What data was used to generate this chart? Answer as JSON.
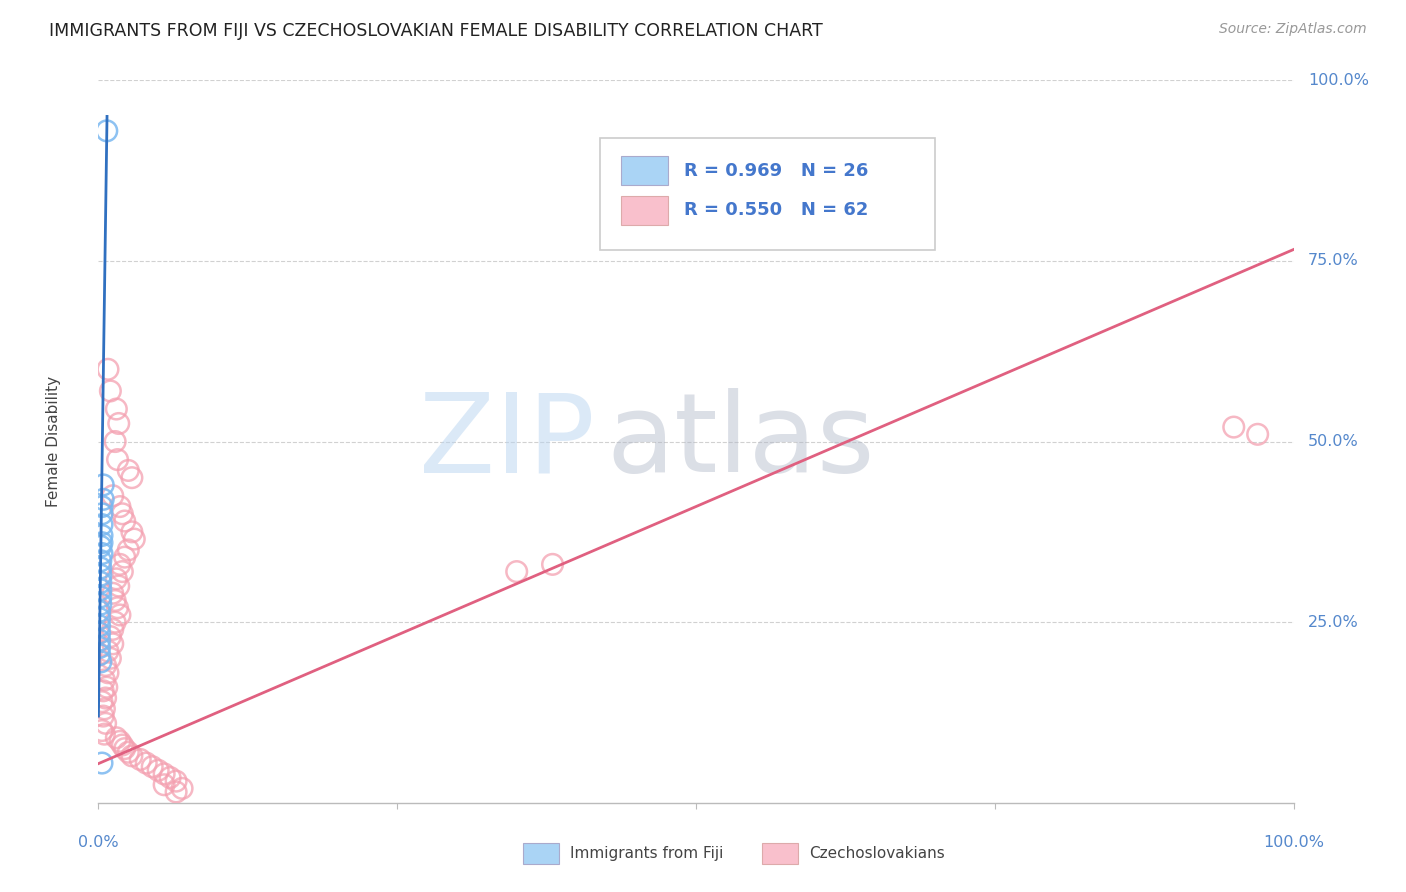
{
  "title": "IMMIGRANTS FROM FIJI VS CZECHOSLOVAKIAN FEMALE DISABILITY CORRELATION CHART",
  "source": "Source: ZipAtlas.com",
  "ylabel": "Female Disability",
  "fiji_color": "#7ab8f0",
  "czech_color": "#f4a0b0",
  "fiji_line_color": "#3070c0",
  "czech_line_color": "#e06080",
  "fiji_R": 0.969,
  "fiji_N": 26,
  "czech_R": 0.55,
  "czech_N": 62,
  "fiji_points": [
    [
      0.007,
      0.93
    ],
    [
      0.004,
      0.44
    ],
    [
      0.004,
      0.42
    ],
    [
      0.003,
      0.41
    ],
    [
      0.003,
      0.4
    ],
    [
      0.003,
      0.385
    ],
    [
      0.003,
      0.37
    ],
    [
      0.003,
      0.36
    ],
    [
      0.002,
      0.355
    ],
    [
      0.003,
      0.345
    ],
    [
      0.002,
      0.335
    ],
    [
      0.002,
      0.325
    ],
    [
      0.002,
      0.315
    ],
    [
      0.002,
      0.305
    ],
    [
      0.002,
      0.295
    ],
    [
      0.002,
      0.285
    ],
    [
      0.002,
      0.275
    ],
    [
      0.001,
      0.265
    ],
    [
      0.001,
      0.255
    ],
    [
      0.001,
      0.245
    ],
    [
      0.001,
      0.235
    ],
    [
      0.001,
      0.225
    ],
    [
      0.001,
      0.215
    ],
    [
      0.001,
      0.205
    ],
    [
      0.002,
      0.195
    ],
    [
      0.003,
      0.055
    ]
  ],
  "czech_points": [
    [
      0.008,
      0.6
    ],
    [
      0.01,
      0.57
    ],
    [
      0.015,
      0.545
    ],
    [
      0.017,
      0.525
    ],
    [
      0.014,
      0.5
    ],
    [
      0.016,
      0.475
    ],
    [
      0.025,
      0.46
    ],
    [
      0.028,
      0.45
    ],
    [
      0.012,
      0.425
    ],
    [
      0.018,
      0.41
    ],
    [
      0.02,
      0.4
    ],
    [
      0.022,
      0.39
    ],
    [
      0.028,
      0.375
    ],
    [
      0.03,
      0.365
    ],
    [
      0.025,
      0.35
    ],
    [
      0.022,
      0.34
    ],
    [
      0.018,
      0.33
    ],
    [
      0.02,
      0.32
    ],
    [
      0.015,
      0.31
    ],
    [
      0.017,
      0.3
    ],
    [
      0.012,
      0.29
    ],
    [
      0.014,
      0.28
    ],
    [
      0.016,
      0.27
    ],
    [
      0.018,
      0.26
    ],
    [
      0.014,
      0.25
    ],
    [
      0.012,
      0.24
    ],
    [
      0.01,
      0.23
    ],
    [
      0.012,
      0.22
    ],
    [
      0.008,
      0.21
    ],
    [
      0.01,
      0.2
    ],
    [
      0.006,
      0.19
    ],
    [
      0.008,
      0.18
    ],
    [
      0.005,
      0.17
    ],
    [
      0.007,
      0.16
    ],
    [
      0.004,
      0.155
    ],
    [
      0.006,
      0.145
    ],
    [
      0.003,
      0.14
    ],
    [
      0.005,
      0.13
    ],
    [
      0.004,
      0.12
    ],
    [
      0.006,
      0.11
    ],
    [
      0.003,
      0.1
    ],
    [
      0.005,
      0.095
    ],
    [
      0.015,
      0.09
    ],
    [
      0.018,
      0.085
    ],
    [
      0.02,
      0.08
    ],
    [
      0.022,
      0.075
    ],
    [
      0.025,
      0.07
    ],
    [
      0.028,
      0.065
    ],
    [
      0.035,
      0.06
    ],
    [
      0.04,
      0.055
    ],
    [
      0.045,
      0.05
    ],
    [
      0.05,
      0.045
    ],
    [
      0.055,
      0.04
    ],
    [
      0.06,
      0.035
    ],
    [
      0.065,
      0.03
    ],
    [
      0.055,
      0.025
    ],
    [
      0.07,
      0.02
    ],
    [
      0.065,
      0.015
    ],
    [
      0.35,
      0.32
    ],
    [
      0.38,
      0.33
    ],
    [
      0.95,
      0.52
    ],
    [
      0.97,
      0.51
    ]
  ],
  "fiji_line": [
    [
      0.0,
      0.12
    ],
    [
      0.0072,
      0.95
    ]
  ],
  "czech_line": [
    [
      -0.02,
      0.04
    ],
    [
      1.02,
      0.78
    ]
  ],
  "xlim": [
    0.0,
    1.0
  ],
  "ylim": [
    0.0,
    1.0
  ],
  "xtick_positions": [
    0.0,
    0.25,
    0.5,
    0.75,
    1.0
  ],
  "ytick_positions": [
    0.25,
    0.5,
    0.75,
    1.0
  ],
  "x_labels": {
    "0.0": "0.0%",
    "1.0": "100.0%"
  },
  "y_labels": {
    "0.25": "25.0%",
    "0.5": "50.0%",
    "0.75": "75.0%",
    "1.0": "100.0%"
  },
  "legend_fiji_color": "#aad4f5",
  "legend_czech_color": "#f9c0cc",
  "watermark_zip_color": "#b8d4f0",
  "watermark_atlas_color": "#b0b8c8"
}
